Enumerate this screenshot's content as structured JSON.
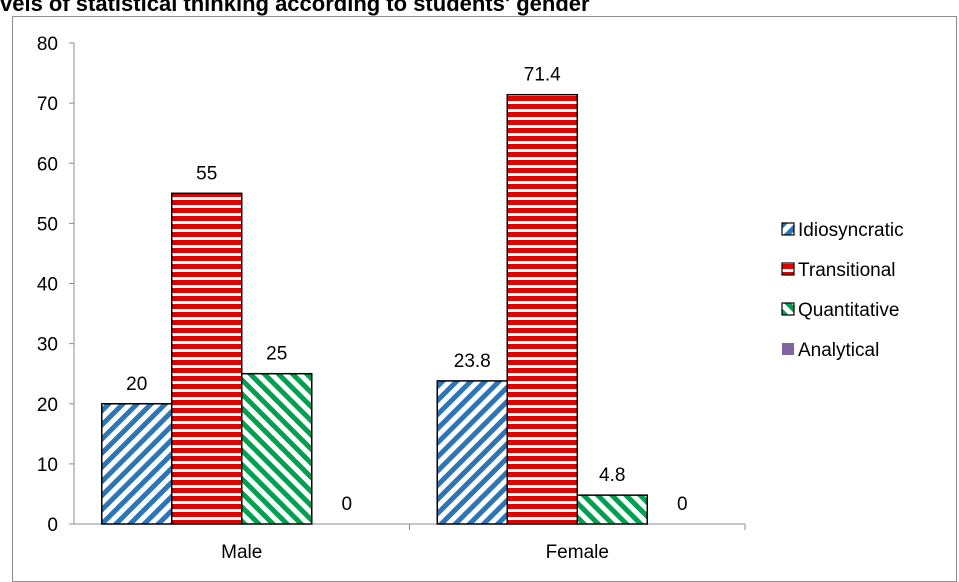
{
  "chart_data": {
    "type": "bar",
    "title": "vels of statistical thinking according to students' gender",
    "categories": [
      "Male",
      "Female"
    ],
    "series": [
      {
        "name": "Idiosyncratic",
        "values": [
          20,
          23.8
        ],
        "labels": [
          "20",
          "23.8"
        ],
        "color": "#2e75b6",
        "pattern": "diagonal-down"
      },
      {
        "name": "Transitional",
        "values": [
          55,
          71.4
        ],
        "labels": [
          "55",
          "71.4"
        ],
        "color": "#e00000",
        "pattern": "horizontal"
      },
      {
        "name": "Quantitative",
        "values": [
          25,
          4.8
        ],
        "labels": [
          "25",
          "4.8"
        ],
        "color": "#00a050",
        "pattern": "diagonal-up"
      },
      {
        "name": "Analytical",
        "values": [
          0,
          0
        ],
        "labels": [
          "0",
          "0"
        ],
        "color": "#8064a2",
        "pattern": "solid"
      }
    ],
    "ylim": [
      0,
      80
    ],
    "yticks": [
      "0",
      "10",
      "20",
      "30",
      "40",
      "50",
      "60",
      "70",
      "80"
    ],
    "legend_position": "right",
    "grid": false
  }
}
